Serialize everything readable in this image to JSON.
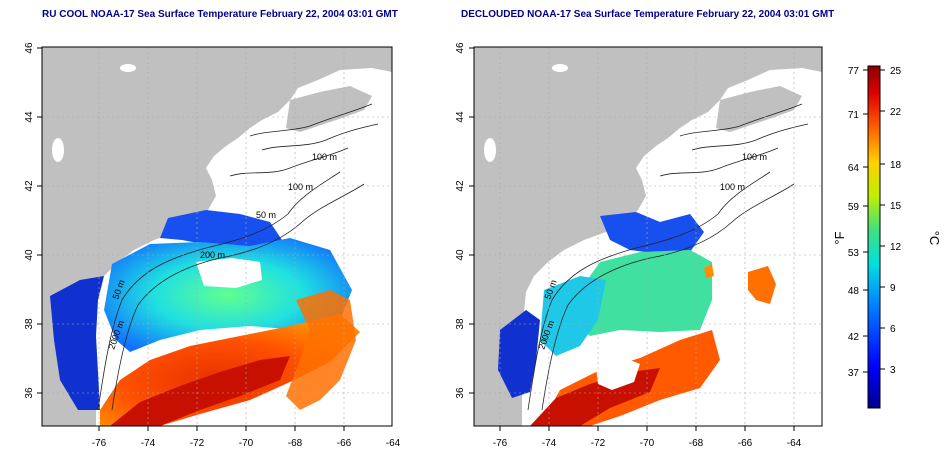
{
  "titles": {
    "left": "RU COOL NOAA-17 Sea Surface Temperature February 22, 2004 03:01 GMT",
    "right": "DECLOUDED NOAA-17 Sea Surface Temperature February 22, 2004 03:01 GMT"
  },
  "axes": {
    "lon_ticks": [
      "-76",
      "-74",
      "-72",
      "-70",
      "-68",
      "-66",
      "-64"
    ],
    "lat_ticks": [
      "36",
      "38",
      "40",
      "42",
      "44",
      "46"
    ],
    "lon_range": [
      -77.2,
      -62.8
    ],
    "lat_range": [
      35,
      46
    ]
  },
  "contours": {
    "left": [
      "100 m",
      "100 m",
      "50 m",
      "200 m",
      "50 m",
      "2000 m"
    ],
    "right": [
      "100 m",
      "100 m",
      "50 m",
      "2000 m"
    ]
  },
  "colorbar": {
    "fahrenheit_unit": "°F",
    "celsius_unit": "°C",
    "fahrenheit_ticks": [
      "77",
      "71",
      "64",
      "59",
      "53",
      "48",
      "42",
      "37"
    ],
    "celsius_ticks": [
      "25",
      "22",
      "18",
      "15",
      "12",
      "9",
      "6",
      "3"
    ],
    "celsius_range": [
      0,
      25
    ]
  },
  "colors": {
    "land": "#c0c0c0",
    "title": "#00008b",
    "cold": "#00008b",
    "warm": "#8b0000"
  }
}
